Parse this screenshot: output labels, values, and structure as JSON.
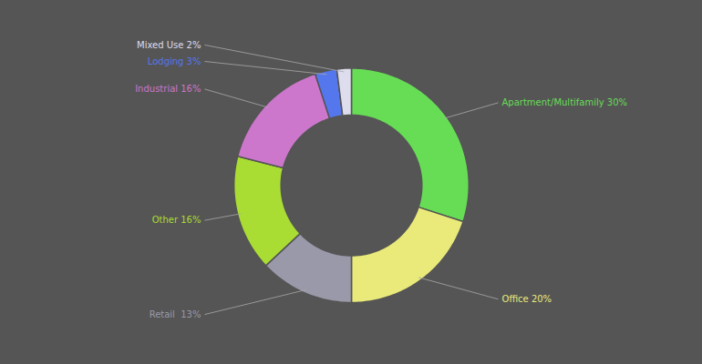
{
  "chart_data": {
    "type": "donut",
    "categories": [
      "Apartment/Multifamily 30%",
      "Office 20%",
      "Retail  13%",
      "Other 16%",
      "Industrial 16%",
      "Lodging 3%",
      "Mixed Use 2%"
    ],
    "values": [
      30,
      20,
      13,
      16,
      16,
      3,
      2
    ],
    "colors": [
      "#66dd55",
      "#eaea7a",
      "#9999aa",
      "#aadd33",
      "#cc77cc",
      "#5577ee",
      "#ddddee"
    ]
  }
}
